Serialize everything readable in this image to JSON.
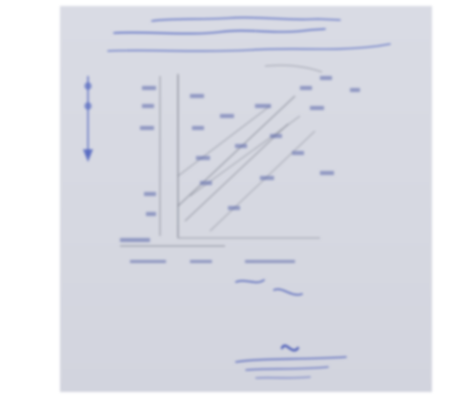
{
  "document": {
    "header_lines": [
      "",
      "",
      ""
    ],
    "footer_lines": [
      "",
      ""
    ]
  },
  "colors": {
    "paper": "#d7d9e2",
    "ink": "#3a4fb0",
    "pencil": "#7c7f8c"
  }
}
